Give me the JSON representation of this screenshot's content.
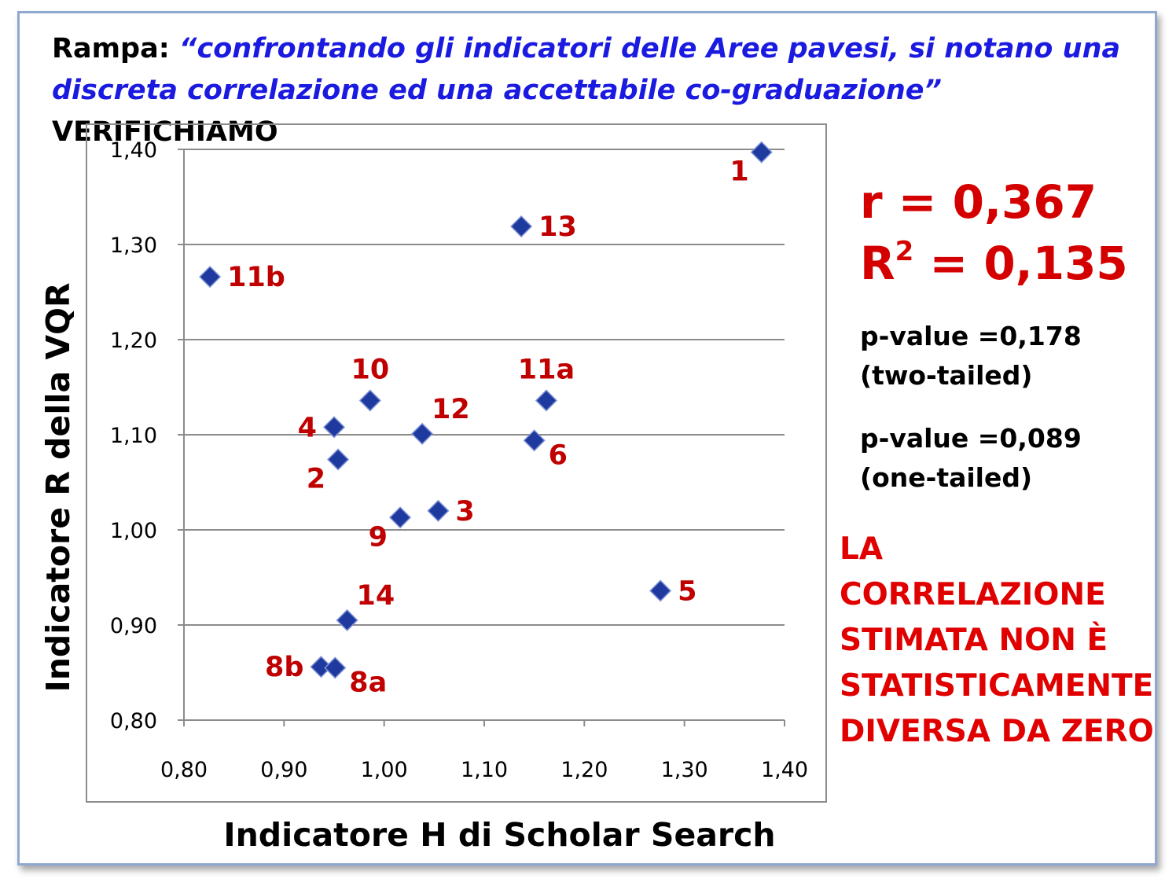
{
  "heading": {
    "prefix": "Rampa: ",
    "quote": "“confrontando gli indicatori delle Aree pavesi, si notano una discreta correlazione ed una accettabile co-graduazione”",
    "suffix": " VERIFICHIAMO"
  },
  "stats": {
    "r": "r = 0,367",
    "r2_prefix": "R",
    "r2_sup": "2",
    "r2_value": " = 0,135",
    "p_two_value": "p-value =0,178",
    "p_two_note": "(two-tailed)",
    "p_one_value": "p-value =0,089",
    "p_one_note": "(one-tailed)"
  },
  "conclusion": [
    "LA CORRELAZIONE",
    "STIMATA NON È",
    "STATISTICAMENTE",
    "DIVERSA DA ZERO"
  ],
  "colors": {
    "marker": "#1f3a9e",
    "label": "#c00000",
    "conclusion": "#e00000",
    "frame": "#8fa8d0"
  },
  "chart_data": {
    "type": "scatter",
    "xlabel": "Indicatore H di Scholar Search",
    "ylabel": "Indicatore R della VQR",
    "xlim": [
      0.8,
      1.4
    ],
    "ylim": [
      0.8,
      1.4
    ],
    "x_ticks": [
      "0,80",
      "0,90",
      "1,00",
      "1,10",
      "1,20",
      "1,30",
      "1,40"
    ],
    "y_ticks": [
      "0,80",
      "0,90",
      "1,00",
      "1,10",
      "1,20",
      "1,30",
      "1,40"
    ],
    "grid": "horizontal",
    "points": [
      {
        "label": "1",
        "x": 1.377,
        "y": 1.397,
        "label_pos": "below-left"
      },
      {
        "label": "13",
        "x": 1.137,
        "y": 1.319,
        "label_pos": "right"
      },
      {
        "label": "11b",
        "x": 0.826,
        "y": 1.266,
        "label_pos": "right"
      },
      {
        "label": "10",
        "x": 0.986,
        "y": 1.136,
        "label_pos": "above"
      },
      {
        "label": "11a",
        "x": 1.162,
        "y": 1.136,
        "label_pos": "above"
      },
      {
        "label": "4",
        "x": 0.95,
        "y": 1.108,
        "label_pos": "left"
      },
      {
        "label": "12",
        "x": 1.038,
        "y": 1.101,
        "label_pos": "above-right"
      },
      {
        "label": "6",
        "x": 1.15,
        "y": 1.094,
        "label_pos": "below-right"
      },
      {
        "label": "2",
        "x": 0.954,
        "y": 1.074,
        "label_pos": "below-left"
      },
      {
        "label": "3",
        "x": 1.054,
        "y": 1.02,
        "label_pos": "right"
      },
      {
        "label": "9",
        "x": 1.016,
        "y": 1.013,
        "label_pos": "below-left"
      },
      {
        "label": "5",
        "x": 1.276,
        "y": 0.936,
        "label_pos": "right"
      },
      {
        "label": "14",
        "x": 0.963,
        "y": 0.905,
        "label_pos": "above-right"
      },
      {
        "label": "8b",
        "x": 0.937,
        "y": 0.856,
        "label_pos": "left"
      },
      {
        "label": "8a",
        "x": 0.951,
        "y": 0.855,
        "label_pos": "below-right"
      }
    ]
  }
}
